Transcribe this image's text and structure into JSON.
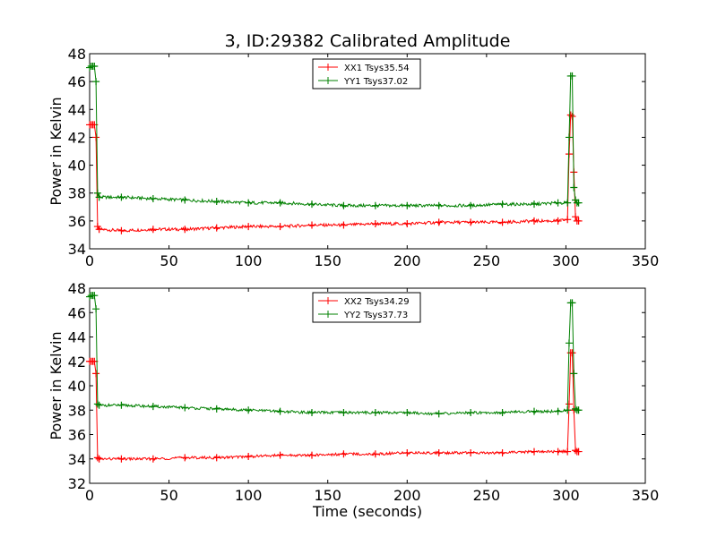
{
  "chart_data": [
    {
      "type": "line",
      "title": "3, ID:29382 Calibrated Amplitude",
      "xlabel": "",
      "ylabel": "Power in Kelvin",
      "xlim": [
        0,
        350
      ],
      "ylim": [
        34,
        48
      ],
      "xticks": [
        0,
        50,
        100,
        150,
        200,
        250,
        300,
        350
      ],
      "yticks": [
        34,
        36,
        38,
        40,
        42,
        44,
        46,
        48
      ],
      "grid": false,
      "legend_position": "top-center",
      "series": [
        {
          "name": "XX1 Tsys35.54",
          "color": "#ff0000",
          "x": [
            0,
            1,
            2,
            3,
            4,
            5,
            6,
            20,
            40,
            60,
            80,
            100,
            120,
            140,
            160,
            180,
            200,
            220,
            240,
            260,
            280,
            295,
            301,
            302,
            303,
            304,
            305,
            306,
            307,
            308
          ],
          "y": [
            42.9,
            42.9,
            42.9,
            42.9,
            42.0,
            35.6,
            35.4,
            35.3,
            35.4,
            35.4,
            35.5,
            35.6,
            35.6,
            35.7,
            35.7,
            35.8,
            35.8,
            35.9,
            35.9,
            35.9,
            36.0,
            36.0,
            36.1,
            40.8,
            43.6,
            43.5,
            39.5,
            36.3,
            36.0,
            36.0
          ]
        },
        {
          "name": "YY1 Tsys37.02",
          "color": "#008000",
          "x": [
            0,
            1,
            2,
            3,
            4,
            5,
            6,
            20,
            40,
            60,
            80,
            100,
            120,
            140,
            160,
            180,
            200,
            220,
            240,
            260,
            280,
            295,
            301,
            302,
            303,
            304,
            305,
            306,
            307,
            308
          ],
          "y": [
            47.0,
            47.1,
            47.1,
            47.1,
            46.0,
            38.0,
            37.7,
            37.7,
            37.6,
            37.5,
            37.4,
            37.3,
            37.3,
            37.2,
            37.1,
            37.1,
            37.1,
            37.1,
            37.1,
            37.2,
            37.2,
            37.3,
            37.3,
            42.0,
            46.4,
            46.4,
            38.4,
            37.5,
            37.3,
            37.3
          ]
        }
      ]
    },
    {
      "type": "line",
      "title": "",
      "xlabel": "Time (seconds)",
      "ylabel": "Power in Kelvin",
      "xlim": [
        0,
        350
      ],
      "ylim": [
        32,
        48
      ],
      "xticks": [
        0,
        50,
        100,
        150,
        200,
        250,
        300,
        350
      ],
      "yticks": [
        32,
        34,
        36,
        38,
        40,
        42,
        44,
        46,
        48
      ],
      "grid": false,
      "legend_position": "top-center",
      "series": [
        {
          "name": "XX2 Tsys34.29",
          "color": "#ff0000",
          "x": [
            0,
            1,
            2,
            3,
            4,
            5,
            6,
            20,
            40,
            60,
            80,
            100,
            120,
            140,
            160,
            180,
            200,
            220,
            240,
            260,
            280,
            295,
            301,
            302,
            303,
            304,
            305,
            306,
            307,
            308
          ],
          "y": [
            42.0,
            42.0,
            42.0,
            42.0,
            41.0,
            34.1,
            34.0,
            34.0,
            34.0,
            34.1,
            34.1,
            34.2,
            34.3,
            34.3,
            34.4,
            34.4,
            34.5,
            34.5,
            34.5,
            34.5,
            34.6,
            34.6,
            34.6,
            38.5,
            42.7,
            42.7,
            38.0,
            34.7,
            34.6,
            34.6
          ]
        },
        {
          "name": "YY2 Tsys37.73",
          "color": "#008000",
          "x": [
            0,
            1,
            2,
            3,
            4,
            5,
            6,
            20,
            40,
            60,
            80,
            100,
            120,
            140,
            160,
            180,
            200,
            220,
            240,
            260,
            280,
            295,
            301,
            302,
            303,
            304,
            305,
            306,
            307,
            308
          ],
          "y": [
            47.3,
            47.4,
            47.4,
            47.4,
            46.3,
            38.5,
            38.4,
            38.4,
            38.3,
            38.2,
            38.1,
            38.0,
            37.9,
            37.8,
            37.8,
            37.8,
            37.8,
            37.7,
            37.8,
            37.8,
            37.9,
            37.9,
            38.0,
            43.5,
            46.8,
            46.8,
            41.0,
            38.1,
            38.0,
            38.0
          ]
        }
      ]
    }
  ]
}
